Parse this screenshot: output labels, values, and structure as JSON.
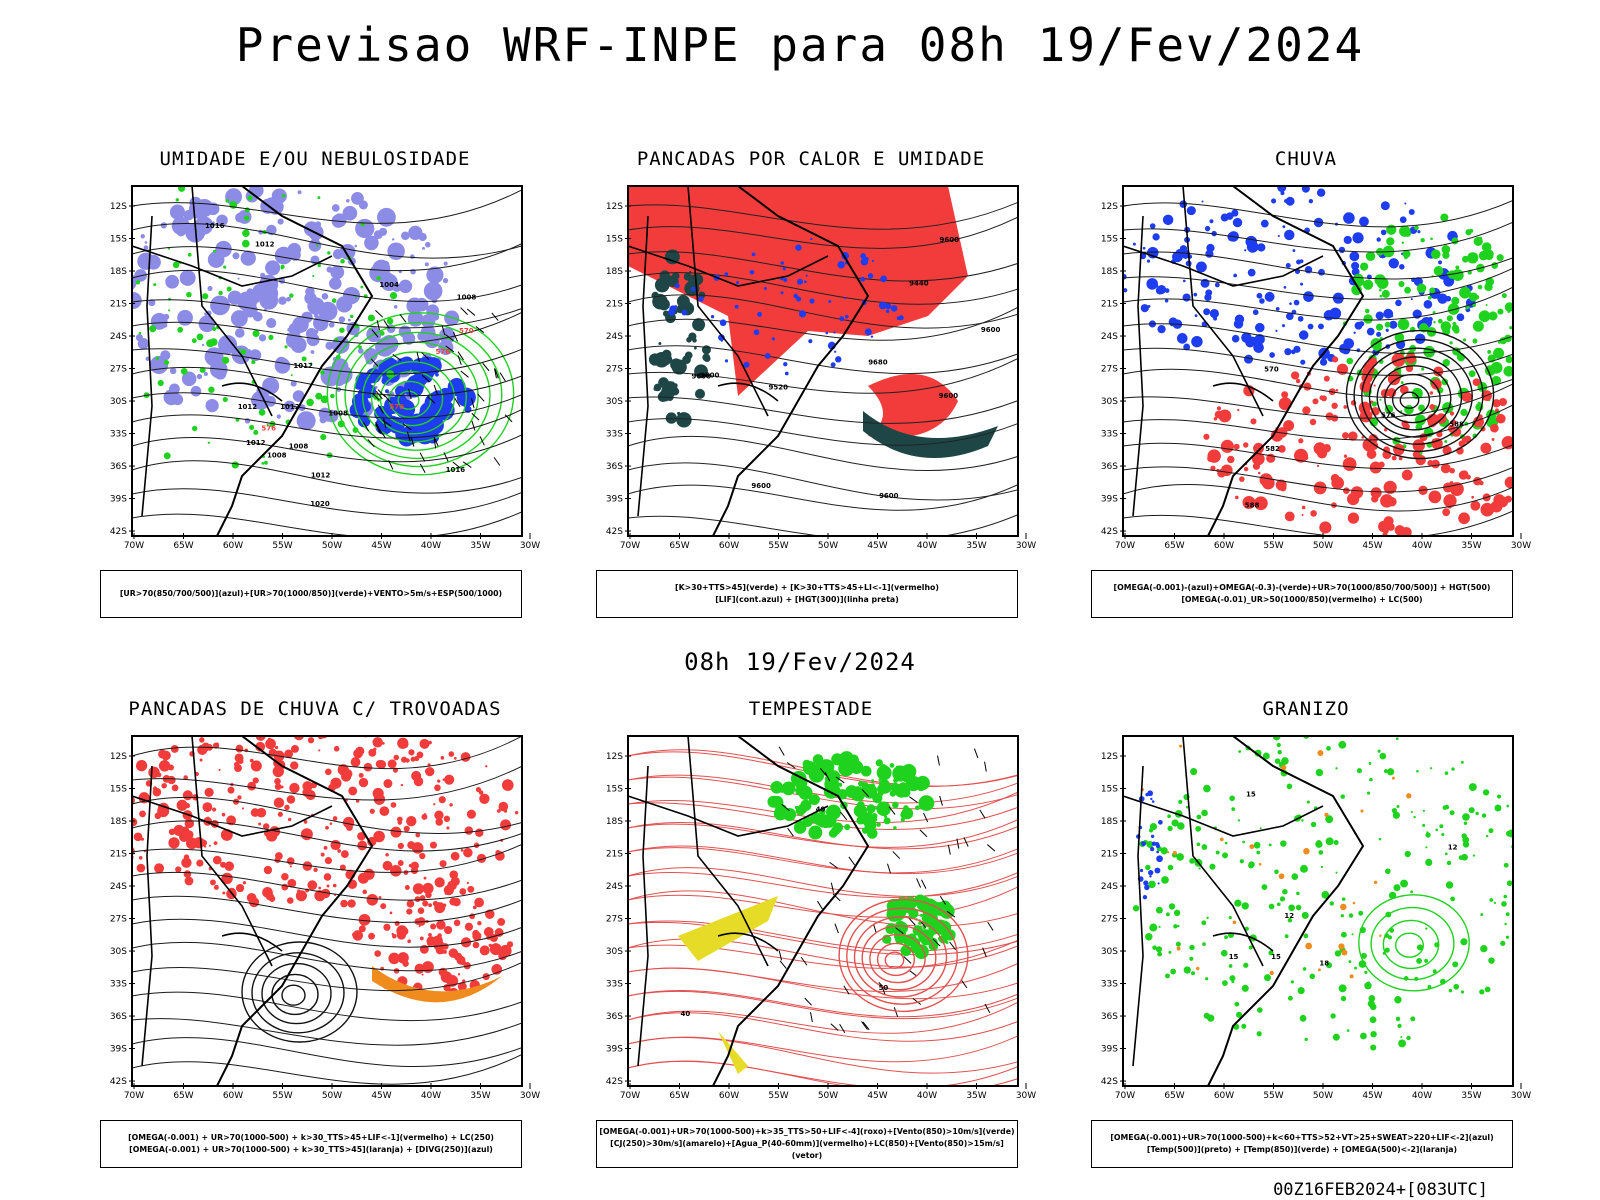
{
  "header": {
    "title": "Previsao WRF-INPE  para 08h 19/Fev/2024",
    "mid_title": "08h 19/Fev/2024",
    "footer": "00Z16FEB2024+[083UTC]"
  },
  "axes": {
    "lat_labels": [
      "12S",
      "15S",
      "18S",
      "21S",
      "24S",
      "27S",
      "30S",
      "33S",
      "36S",
      "39S",
      "42S"
    ],
    "lon_labels": [
      "70W",
      "65W",
      "60W",
      "55W",
      "50W",
      "45W",
      "40W",
      "35W",
      "30W"
    ]
  },
  "colors": {
    "red": "#f23c3c",
    "green": "#1ed21e",
    "blue": "#1e3cf0",
    "lavender": "#8c8ce6",
    "dark_teal": "#1e4646",
    "orange": "#f08c1e",
    "yellow": "#e6dc28",
    "purple": "#a000c8"
  },
  "panels": [
    {
      "id": "umidade",
      "title": "UMIDADE E/OU NEBULOSIDADE",
      "caption": [
        "[UR>70(850/700/500)](azul)+[UR>70(1000/850)](verde)+VENTO>5m/s+ESP(500/1000)"
      ],
      "contour_labels": [
        "1012",
        "1012",
        "1012",
        "1012",
        "1008",
        "1008",
        "1008",
        "1008",
        "1004",
        "1012",
        "1012",
        "1016",
        "1016",
        "1020",
        "576",
        "570",
        "576",
        "570"
      ]
    },
    {
      "id": "pancadas-calor",
      "title": "PANCADAS POR CALOR E UMIDADE",
      "caption": [
        "[K>30+TTS>45](verde) + [K>30+TTS>45+LI<-1](vermelho)",
        "[LIF](cont.azul) + [HGT(300)](linha preta)"
      ],
      "contour_labels": [
        "9680",
        "9600",
        "9600",
        "9600",
        "9600",
        "9600",
        "9520",
        "9600",
        "9440",
        "9600"
      ]
    },
    {
      "id": "chuva",
      "title": "CHUVA",
      "caption": [
        "[OMEGA(-0.001)-(azul)+OMEGA(-0.3)-(verde)+UR>70(1000/850/700/500)] + HGT(500)",
        "[OMEGA(-0.01)_UR>50(1000/850)(vermelho) + LC(500)"
      ],
      "contour_labels": [
        "588",
        "576",
        "570",
        "582",
        "588"
      ]
    },
    {
      "id": "pancadas-trovoadas",
      "title": "PANCADAS DE CHUVA C/ TROVOADAS",
      "caption": [
        "[OMEGA(-0.001) + UR>70(1000-500) + k>30_TTS>45+LIF<-1](vermelho) + LC(250)",
        "[OMEGA(-0.001) + UR>70(1000-500) + k>30_TTS>45](laranja) + [DIVG(250)](azul)"
      ],
      "contour_labels": []
    },
    {
      "id": "tempestade",
      "title": "TEMPESTADE",
      "caption": [
        "[OMEGA(-0.001)+UR>70(1000-500)+k>35_TTS>50+LIF<-4](roxo)+[Vento(850)>10m/s](verde)",
        "[CJ(250)>30m/s](amarelo)+[Agua_P(40-60mm)](vermelho)+LC(850)+[Vento(850)>15m/s](vetor)"
      ],
      "contour_labels": [
        "40",
        "50",
        "40"
      ]
    },
    {
      "id": "granizo",
      "title": "GRANIZO",
      "caption": [
        "[OMEGA(-0.001)+UR>70(1000-500)+k<60+TTS>52+VT>25+SWEAT>220+LIF<-2](azul)",
        "[Temp(500)](preto) + [Temp(850)](verde) + [OMEGA(500)<-2](laranja)"
      ],
      "contour_labels": [
        "15",
        "15",
        "15",
        "12",
        "18",
        "12"
      ]
    }
  ]
}
